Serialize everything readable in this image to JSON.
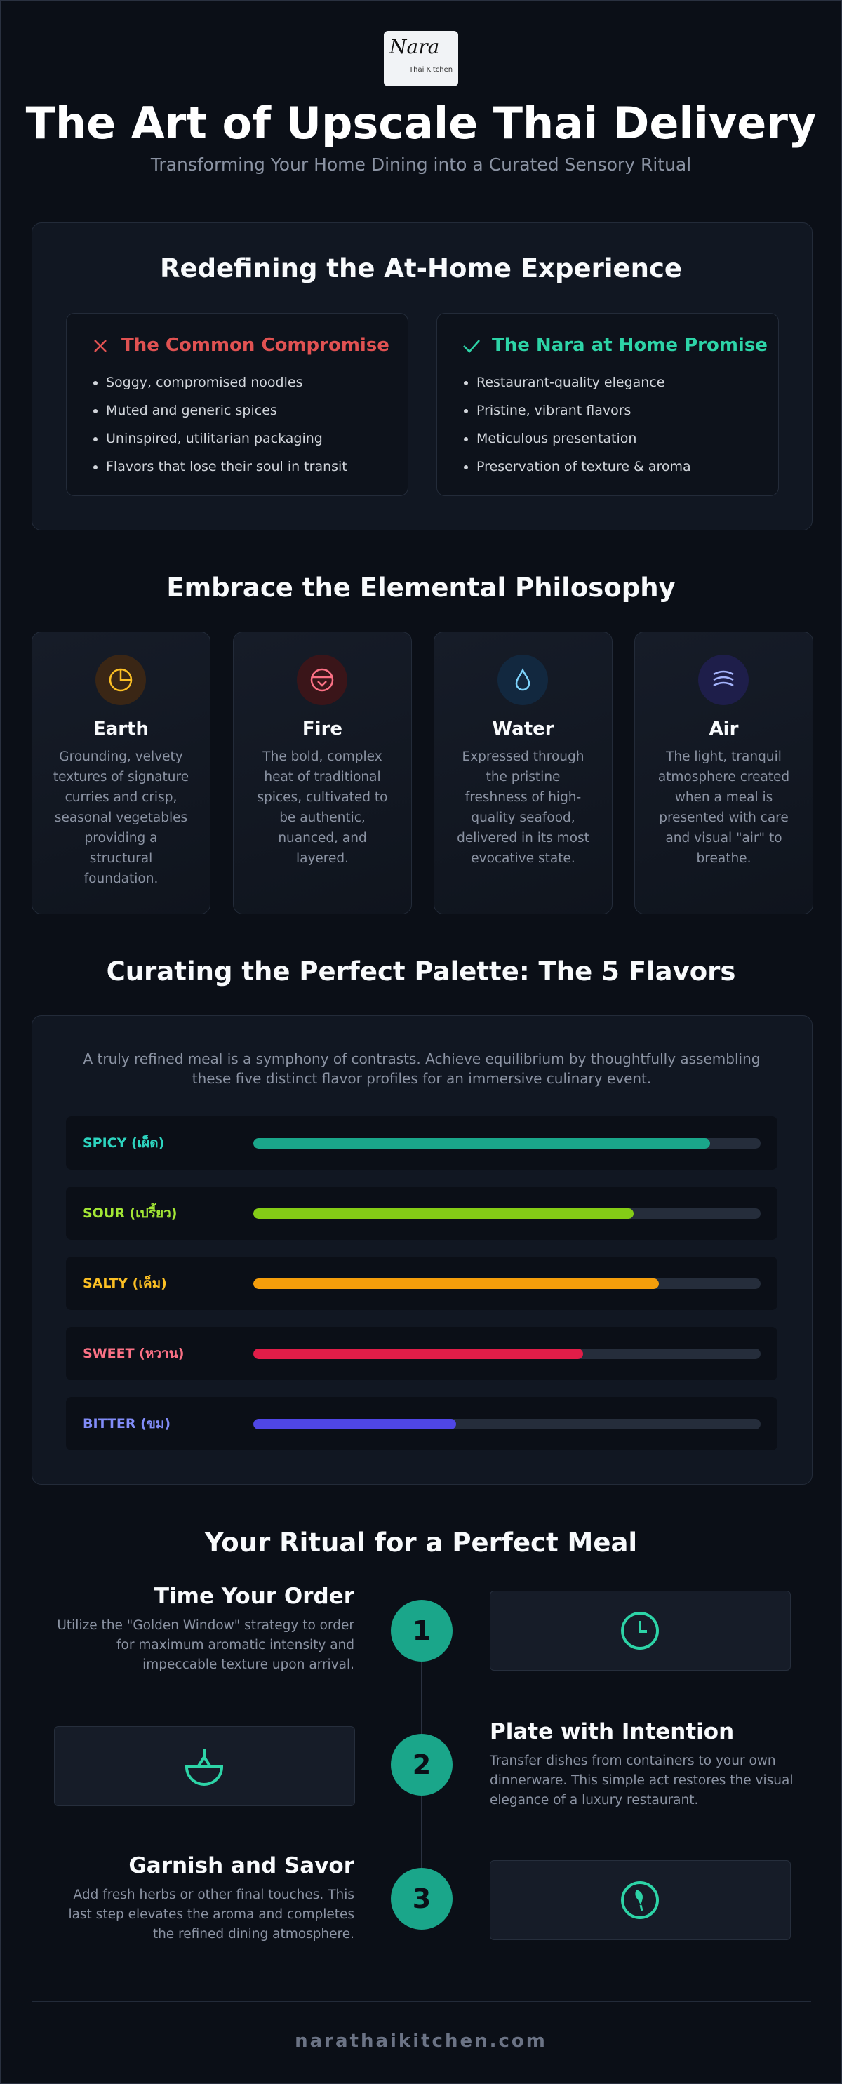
{
  "logo": {
    "script": "Nara",
    "subtitle": "Thai Kitchen"
  },
  "header": {
    "title": "The Art of Upscale Thai Delivery",
    "subtitle": "Transforming Your Home Dining into a Curated Sensory Ritual"
  },
  "experience": {
    "title": "Redefining the At-Home Experience",
    "compromise": {
      "title": "The Common Compromise",
      "items": [
        "Soggy, compromised noodles",
        "Muted and generic spices",
        "Uninspired, utilitarian packaging",
        "Flavors that lose their soul in transit"
      ]
    },
    "promise": {
      "title": "The Nara at Home Promise",
      "items": [
        "Restaurant-quality elegance",
        "Pristine, vibrant flavors",
        "Meticulous presentation",
        "Preservation of texture & aroma"
      ]
    }
  },
  "elements": {
    "title": "Embrace the Elemental Philosophy",
    "cards": [
      {
        "name": "Earth",
        "text": "Grounding, velvety textures of signature curries and crisp, seasonal vegetables providing a structural foundation."
      },
      {
        "name": "Fire",
        "text": "The bold, complex heat of traditional spices, cultivated to be authentic, nuanced, and layered."
      },
      {
        "name": "Water",
        "text": "Expressed through the pristine freshness of high-quality seafood, delivered in its most evocative state."
      },
      {
        "name": "Air",
        "text": "The light, tranquil atmosphere created when a meal is presented with care and visual \"air\" to breathe."
      }
    ]
  },
  "flavors": {
    "title": "Curating the Perfect Palette: The 5 Flavors",
    "intro": "A truly refined meal is a symphony of contrasts. Achieve equilibrium by thoughtfully assembling these five distinct flavor profiles for an immersive culinary event.",
    "items": [
      {
        "label": "SPICY (เผ็ด)",
        "level": 90,
        "color": "#1aa68a",
        "label_color": "#2dd4bf"
      },
      {
        "label": "SOUR (เปรี้ยว)",
        "level": 75,
        "color": "#84cc16",
        "label_color": "#a3e635"
      },
      {
        "label": "SALTY (เค็ม)",
        "level": 80,
        "color": "#f59e0b",
        "label_color": "#fbbf24"
      },
      {
        "label": "SWEET (หวาน)",
        "level": 65,
        "color": "#e11d48",
        "label_color": "#fb7185"
      },
      {
        "label": "BITTER (ขม)",
        "level": 40,
        "color": "#4f46e5",
        "label_color": "#818cf8"
      }
    ]
  },
  "ritual": {
    "title": "Your Ritual for a Perfect Meal",
    "steps": [
      {
        "number": "1",
        "title": "Time Your Order",
        "text": "Utilize the \"Golden Window\" strategy to order for maximum aromatic intensity and impeccable texture upon arrival."
      },
      {
        "number": "2",
        "title": "Plate with Intention",
        "text": "Transfer dishes from containers to your own dinnerware. This simple act restores the visual elegance of a luxury restaurant."
      },
      {
        "number": "3",
        "title": "Garnish and Savor",
        "text": "Add fresh herbs or other final touches. This last step elevates the aroma and completes the refined dining atmosphere."
      }
    ]
  },
  "footer": "narathaikitchen.com"
}
